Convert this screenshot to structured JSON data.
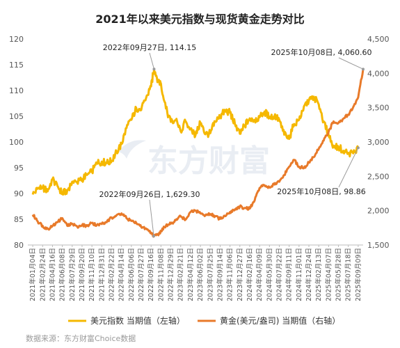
{
  "chart_data": {
    "type": "line",
    "title": "2021年以来美元指数与现货黄金走势对比",
    "y_left": {
      "min": 80,
      "max": 120,
      "ticks": [
        80,
        85,
        90,
        95,
        100,
        105,
        110,
        115,
        120
      ]
    },
    "y_right": {
      "min": 1500,
      "max": 4500,
      "ticks": [
        "1,500",
        "2,000",
        "2,500",
        "3,000",
        "3,500",
        "4,000",
        "4,500"
      ]
    },
    "x_tick_labels": [
      "2021年01月04日",
      "2021年02月24日",
      "2021年04月16日",
      "2021年06月08日",
      "2021年07月29日",
      "2021年09月20日",
      "2021年11月10日",
      "2021年12月31日",
      "2022年02月22日",
      "2022年04月14日",
      "2022年06月06日",
      "2022年07月27日",
      "2022年09月16日",
      "2022年11月08日",
      "2022年12月29日",
      "2023年02月21日",
      "2023年04月12日",
      "2023年06月02日",
      "2023年07月25日",
      "2023年09月14日",
      "2023年11月06日",
      "2023年12月27日",
      "2024年02月16日",
      "2024年04月09日",
      "2024年05月30日",
      "2024年07月22日",
      "2024年09月11日",
      "2024年11月01日",
      "2024年12月24日",
      "2025年02月13日",
      "2025年04月07日",
      "2025年05月28日",
      "2025年07月18日",
      "2025年09月09日"
    ],
    "series": [
      {
        "name": "美元指数 当期值（左轴）",
        "axis": "left",
        "color": "#f5b800",
        "points": [
          [
            0,
            89.8
          ],
          [
            0.5,
            90.9
          ],
          [
            1,
            91.2
          ],
          [
            1.5,
            90.4
          ],
          [
            2,
            92.8
          ],
          [
            2.5,
            91.5
          ],
          [
            3,
            90.0
          ],
          [
            3.5,
            90.6
          ],
          [
            4,
            92.3
          ],
          [
            4.5,
            92.1
          ],
          [
            5,
            92.8
          ],
          [
            5.5,
            93.6
          ],
          [
            6,
            94.2
          ],
          [
            6.5,
            95.9
          ],
          [
            7,
            96.2
          ],
          [
            7.5,
            95.9
          ],
          [
            8,
            96.3
          ],
          [
            8.5,
            98.1
          ],
          [
            9,
            99.6
          ],
          [
            9.5,
            102.7
          ],
          [
            10,
            104.3
          ],
          [
            10.5,
            106.6
          ],
          [
            11,
            106.2
          ],
          [
            11.5,
            108.6
          ],
          [
            12,
            110.8
          ],
          [
            12.3,
            114.15
          ],
          [
            12.7,
            112.0
          ],
          [
            13,
            111.3
          ],
          [
            13.5,
            106.5
          ],
          [
            14,
            103.9
          ],
          [
            14.5,
            104.2
          ],
          [
            15,
            102.1
          ],
          [
            15.5,
            104.0
          ],
          [
            16,
            102.6
          ],
          [
            16.5,
            101.3
          ],
          [
            17,
            103.7
          ],
          [
            17.5,
            101.5
          ],
          [
            18,
            101.7
          ],
          [
            18.5,
            104.0
          ],
          [
            19,
            104.9
          ],
          [
            19.5,
            106.1
          ],
          [
            20,
            105.7
          ],
          [
            20.5,
            103.5
          ],
          [
            21,
            101.6
          ],
          [
            21.5,
            103.2
          ],
          [
            22,
            104.6
          ],
          [
            22.5,
            104.3
          ],
          [
            23,
            104.8
          ],
          [
            23.5,
            105.9
          ],
          [
            24,
            104.8
          ],
          [
            24.5,
            105.0
          ],
          [
            25,
            104.3
          ],
          [
            25.5,
            101.4
          ],
          [
            26,
            100.6
          ],
          [
            26.5,
            103.5
          ],
          [
            27,
            104.3
          ],
          [
            27.5,
            106.9
          ],
          [
            28,
            108.0
          ],
          [
            28.5,
            108.8
          ],
          [
            29,
            107.3
          ],
          [
            29.5,
            104.0
          ],
          [
            30,
            101.3
          ],
          [
            30.5,
            99.3
          ],
          [
            31,
            99.0
          ],
          [
            31.5,
            98.3
          ],
          [
            32,
            97.9
          ],
          [
            32.5,
            97.8
          ],
          [
            33,
            98.86
          ]
        ]
      },
      {
        "name": "黄金(美元/盎司) 当期值（右轴）",
        "axis": "right",
        "color": "#e87a2a",
        "points": [
          [
            0,
            1942
          ],
          [
            0.5,
            1845
          ],
          [
            1,
            1780
          ],
          [
            1.5,
            1733
          ],
          [
            2,
            1775
          ],
          [
            2.5,
            1830
          ],
          [
            3,
            1890
          ],
          [
            3.5,
            1780
          ],
          [
            4,
            1810
          ],
          [
            4.5,
            1770
          ],
          [
            5,
            1790
          ],
          [
            5.5,
            1780
          ],
          [
            6,
            1820
          ],
          [
            6.5,
            1790
          ],
          [
            7,
            1805
          ],
          [
            7.5,
            1830
          ],
          [
            8,
            1900
          ],
          [
            8.5,
            1935
          ],
          [
            9,
            1960
          ],
          [
            9.5,
            1890
          ],
          [
            10,
            1850
          ],
          [
            10.5,
            1820
          ],
          [
            11,
            1760
          ],
          [
            11.5,
            1740
          ],
          [
            12,
            1680
          ],
          [
            12.27,
            1629.3
          ],
          [
            12.7,
            1650
          ],
          [
            13,
            1700
          ],
          [
            13.5,
            1780
          ],
          [
            14,
            1810
          ],
          [
            14.5,
            1860
          ],
          [
            15,
            1920
          ],
          [
            15.5,
            1870
          ],
          [
            16,
            1980
          ],
          [
            16.5,
            2000
          ],
          [
            17,
            1960
          ],
          [
            17.5,
            1930
          ],
          [
            18,
            1950
          ],
          [
            18.5,
            1920
          ],
          [
            19,
            1880
          ],
          [
            19.5,
            1920
          ],
          [
            20,
            1980
          ],
          [
            20.5,
            2020
          ],
          [
            21,
            2060
          ],
          [
            21.5,
            2040
          ],
          [
            22,
            2030
          ],
          [
            22.5,
            2150
          ],
          [
            23,
            2330
          ],
          [
            23.5,
            2370
          ],
          [
            24,
            2340
          ],
          [
            24.5,
            2380
          ],
          [
            25,
            2420
          ],
          [
            25.5,
            2520
          ],
          [
            26,
            2640
          ],
          [
            26.5,
            2740
          ],
          [
            27,
            2640
          ],
          [
            27.5,
            2620
          ],
          [
            28,
            2700
          ],
          [
            28.5,
            2780
          ],
          [
            29,
            2900
          ],
          [
            29.5,
            3020
          ],
          [
            30,
            3150
          ],
          [
            30.5,
            3300
          ],
          [
            31,
            3280
          ],
          [
            31.5,
            3340
          ],
          [
            32,
            3400
          ],
          [
            32.5,
            3510
          ],
          [
            33,
            3650
          ],
          [
            33.5,
            4060.6
          ]
        ]
      }
    ],
    "annotations": [
      {
        "text": "2022年09月27日, 114.15"
      },
      {
        "text": "2022年09月26日, 1,629.30"
      },
      {
        "text": "2025年10月08日, 4,060.60"
      },
      {
        "text": "2025年10月08日, 98.86"
      }
    ],
    "legend": {
      "position": "bottom"
    },
    "grid": false
  },
  "watermark": "东方财富",
  "source": "数据来源：东方财富Choice数据"
}
